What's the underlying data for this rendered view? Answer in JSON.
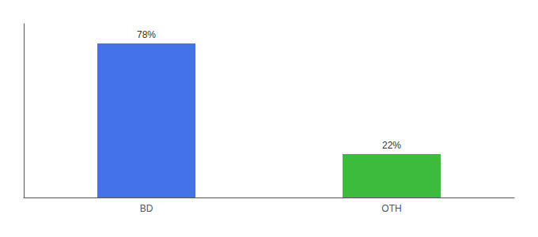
{
  "chart_data": {
    "type": "bar",
    "categories": [
      "BD",
      "OTH"
    ],
    "values": [
      78,
      22
    ],
    "value_labels": [
      "78%",
      "22%"
    ],
    "data_labels": true,
    "colors": [
      "#4472e8",
      "#3dbb3d"
    ],
    "ylim": [
      0,
      88
    ],
    "yticks": [],
    "grid": false,
    "tick_labels": "x"
  }
}
